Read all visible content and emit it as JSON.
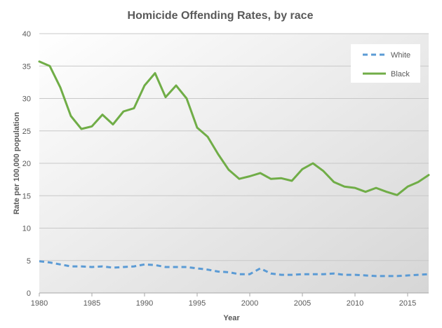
{
  "chart_data": {
    "type": "line",
    "title": "Homicide Offending Rates, by race",
    "xlabel": "Year",
    "ylabel": "Rate per 100,000 population",
    "xlim": [
      1980,
      2017
    ],
    "ylim": [
      0,
      40
    ],
    "x_ticks": [
      1980,
      1985,
      1990,
      1995,
      2000,
      2005,
      2010,
      2015
    ],
    "y_ticks": [
      0,
      5,
      10,
      15,
      20,
      25,
      30,
      35,
      40
    ],
    "grid": true,
    "legend_position": "top-right",
    "x": [
      1980,
      1981,
      1982,
      1983,
      1984,
      1985,
      1986,
      1987,
      1988,
      1989,
      1990,
      1991,
      1992,
      1993,
      1994,
      1995,
      1996,
      1997,
      1998,
      1999,
      2000,
      2001,
      2002,
      2003,
      2004,
      2005,
      2006,
      2007,
      2008,
      2009,
      2010,
      2011,
      2012,
      2013,
      2014,
      2015,
      2016,
      2017
    ],
    "series": [
      {
        "name": "White",
        "color": "#5B9BD5",
        "style": "dashed",
        "values": [
          4.9,
          4.7,
          4.4,
          4.1,
          4.1,
          4.0,
          4.1,
          3.9,
          4.0,
          4.1,
          4.4,
          4.3,
          4.0,
          4.0,
          4.0,
          3.8,
          3.6,
          3.3,
          3.2,
          2.9,
          2.9,
          3.8,
          3.0,
          2.8,
          2.8,
          2.9,
          2.9,
          2.9,
          3.0,
          2.8,
          2.8,
          2.7,
          2.6,
          2.6,
          2.6,
          2.7,
          2.8,
          2.9
        ]
      },
      {
        "name": "Black",
        "color": "#70AD47",
        "style": "solid",
        "values": [
          35.7,
          35.0,
          31.7,
          27.3,
          25.3,
          25.7,
          27.5,
          26.0,
          28.0,
          28.5,
          32.0,
          33.9,
          30.2,
          32.0,
          30.0,
          25.5,
          24.1,
          21.4,
          19.0,
          17.6,
          18.0,
          18.5,
          17.6,
          17.7,
          17.3,
          19.1,
          20.0,
          18.8,
          17.1,
          16.4,
          16.2,
          15.6,
          16.2,
          15.6,
          15.1,
          16.4,
          17.1,
          18.2
        ]
      }
    ]
  }
}
